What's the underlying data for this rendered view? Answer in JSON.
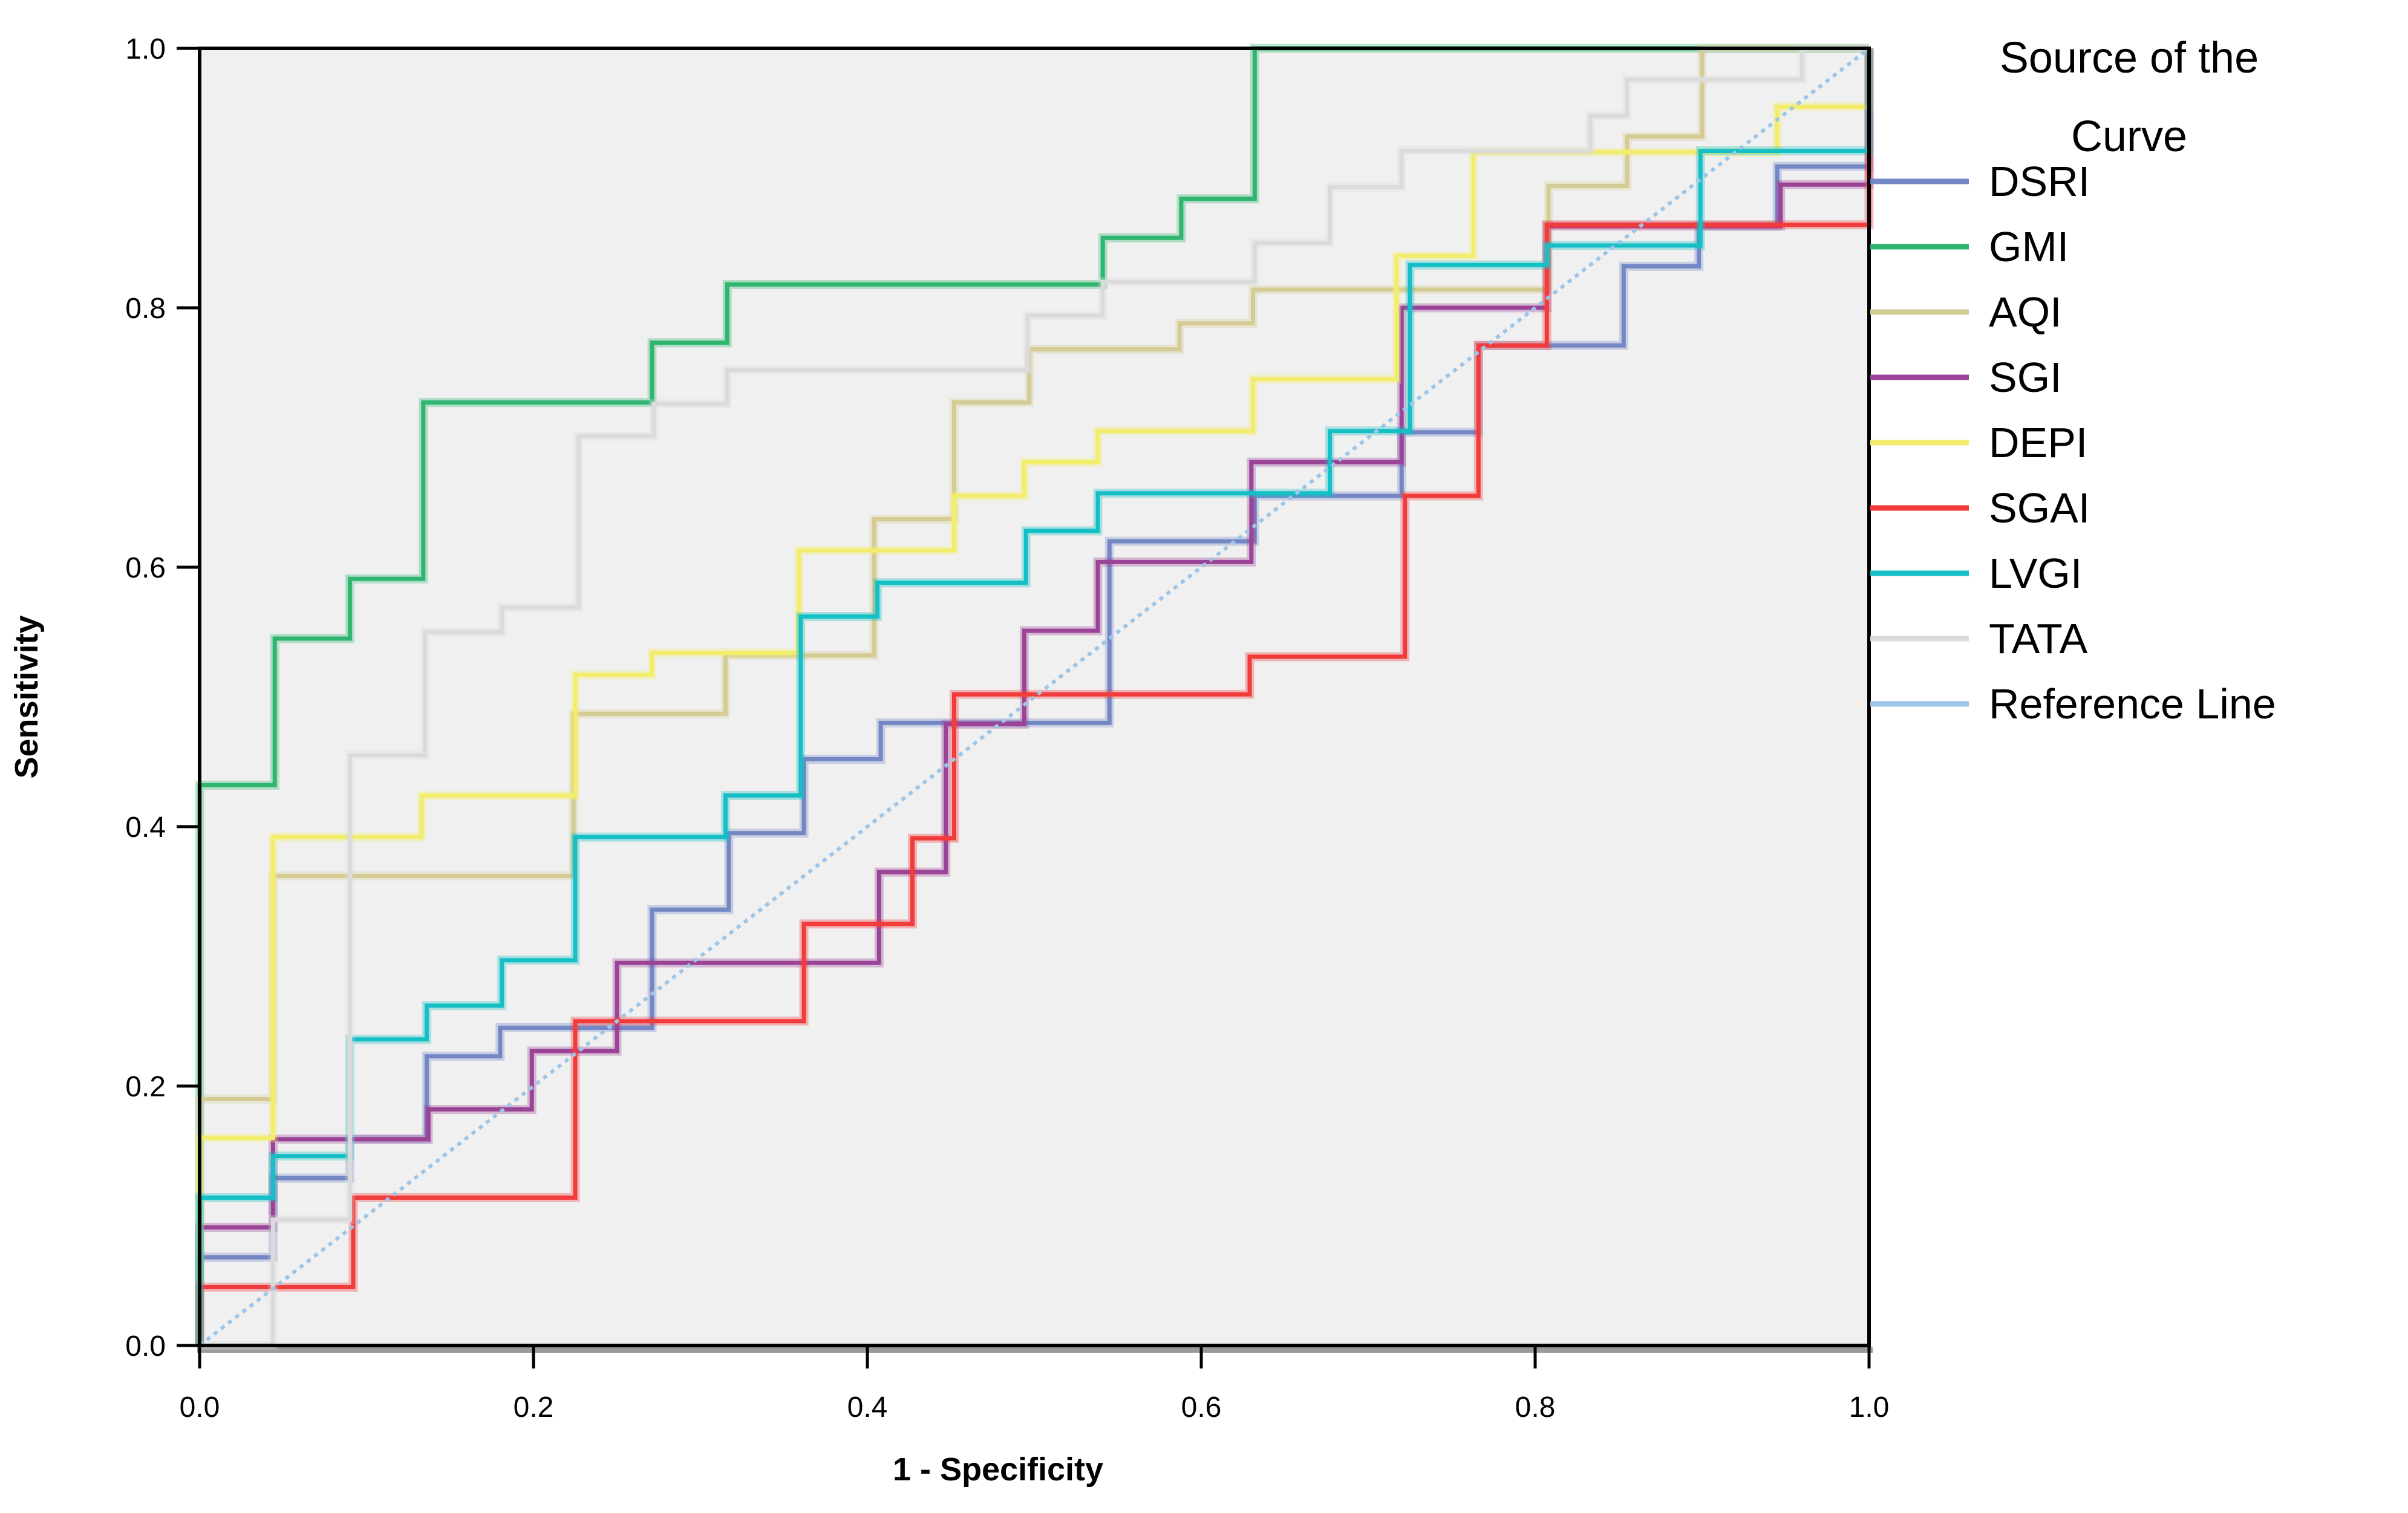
{
  "chart_data": {
    "type": "line",
    "subtype": "roc-step-curves",
    "xlabel": "1 - Specificity",
    "ylabel": "Sensitivity",
    "xlim": [
      0.0,
      1.0
    ],
    "ylim": [
      0.0,
      1.0
    ],
    "xticks": [
      0.0,
      0.2,
      0.4,
      0.6,
      0.8,
      1.0
    ],
    "yticks": [
      0.0,
      0.2,
      0.4,
      0.6,
      0.8,
      1.0
    ],
    "grid": false,
    "plot_background": "#F0F0F0",
    "frame_color": "#000000",
    "legend": {
      "title_lines": [
        "Source of the",
        "Curve"
      ],
      "position": "right"
    },
    "series": [
      {
        "name": "DSRI",
        "color": "#7487C5",
        "start": 0.068,
        "rises": [
          [
            0.044,
            0.129
          ],
          [
            0.09,
            0.159
          ],
          [
            0.136,
            0.223
          ],
          [
            0.18,
            0.245
          ],
          [
            0.271,
            0.336
          ],
          [
            0.317,
            0.395
          ],
          [
            0.362,
            0.452
          ],
          [
            0.408,
            0.48
          ],
          [
            0.545,
            0.62
          ],
          [
            0.632,
            0.655
          ],
          [
            0.72,
            0.704
          ],
          [
            0.766,
            0.771
          ],
          [
            0.853,
            0.832
          ],
          [
            0.898,
            0.863
          ],
          [
            0.945,
            0.909
          ],
          [
            1.0,
            1.0
          ]
        ]
      },
      {
        "name": "GMI",
        "color": "#2FB56F",
        "start": 0.432,
        "rises": [
          [
            0.045,
            0.545
          ],
          [
            0.09,
            0.591
          ],
          [
            0.134,
            0.727
          ],
          [
            0.271,
            0.773
          ],
          [
            0.316,
            0.818
          ],
          [
            0.541,
            0.854
          ],
          [
            0.588,
            0.884
          ],
          [
            0.632,
            1.0
          ]
        ]
      },
      {
        "name": "AQI",
        "color": "#D5CB95",
        "start": 0.19,
        "rises": [
          [
            0.044,
            0.362
          ],
          [
            0.224,
            0.487
          ],
          [
            0.315,
            0.532
          ],
          [
            0.404,
            0.637
          ],
          [
            0.452,
            0.727
          ],
          [
            0.497,
            0.768
          ],
          [
            0.587,
            0.788
          ],
          [
            0.631,
            0.814
          ],
          [
            0.808,
            0.894
          ],
          [
            0.855,
            0.932
          ],
          [
            0.9,
            1.0
          ]
        ]
      },
      {
        "name": "SGI",
        "color": "#9B4397",
        "start": 0.091,
        "rises": [
          [
            0.044,
            0.159
          ],
          [
            0.137,
            0.182
          ],
          [
            0.199,
            0.227
          ],
          [
            0.25,
            0.295
          ],
          [
            0.407,
            0.365
          ],
          [
            0.447,
            0.479
          ],
          [
            0.494,
            0.551
          ],
          [
            0.538,
            0.604
          ],
          [
            0.63,
            0.681
          ],
          [
            0.72,
            0.8
          ],
          [
            0.807,
            0.863
          ],
          [
            0.947,
            0.895
          ],
          [
            1.0,
            1.0
          ]
        ]
      },
      {
        "name": "DEPI",
        "color": "#F2ED6C",
        "start": 0.16,
        "rises": [
          [
            0.044,
            0.392
          ],
          [
            0.133,
            0.424
          ],
          [
            0.225,
            0.517
          ],
          [
            0.271,
            0.534
          ],
          [
            0.359,
            0.613
          ],
          [
            0.452,
            0.655
          ],
          [
            0.494,
            0.681
          ],
          [
            0.538,
            0.705
          ],
          [
            0.631,
            0.745
          ],
          [
            0.717,
            0.84
          ],
          [
            0.763,
            0.92
          ],
          [
            0.945,
            0.955
          ],
          [
            1.0,
            1.0
          ]
        ]
      },
      {
        "name": "SGAI",
        "color": "#F23B3B",
        "start": 0.045,
        "rises": [
          [
            0.092,
            0.114
          ],
          [
            0.225,
            0.25
          ],
          [
            0.362,
            0.325
          ],
          [
            0.427,
            0.391
          ],
          [
            0.452,
            0.502
          ],
          [
            0.629,
            0.531
          ],
          [
            0.722,
            0.655
          ],
          [
            0.766,
            0.771
          ],
          [
            0.807,
            0.864
          ],
          [
            1.0,
            1.0
          ]
        ]
      },
      {
        "name": "LVGI",
        "color": "#15BFC5",
        "start": 0.114,
        "rises": [
          [
            0.044,
            0.146
          ],
          [
            0.09,
            0.236
          ],
          [
            0.136,
            0.262
          ],
          [
            0.181,
            0.297
          ],
          [
            0.225,
            0.392
          ],
          [
            0.315,
            0.424
          ],
          [
            0.36,
            0.562
          ],
          [
            0.406,
            0.588
          ],
          [
            0.495,
            0.628
          ],
          [
            0.538,
            0.657
          ],
          [
            0.677,
            0.705
          ],
          [
            0.725,
            0.833
          ],
          [
            0.807,
            0.848
          ],
          [
            0.899,
            0.921
          ],
          [
            1.0,
            1.0
          ]
        ]
      },
      {
        "name": "TATA",
        "color": "#DBDBDB",
        "start": 0.0,
        "rises": [
          [
            0.044,
            0.097
          ],
          [
            0.09,
            0.455
          ],
          [
            0.135,
            0.55
          ],
          [
            0.181,
            0.569
          ],
          [
            0.227,
            0.701
          ],
          [
            0.272,
            0.726
          ],
          [
            0.316,
            0.752
          ],
          [
            0.496,
            0.794
          ],
          [
            0.541,
            0.82
          ],
          [
            0.632,
            0.85
          ],
          [
            0.677,
            0.893
          ],
          [
            0.72,
            0.921
          ],
          [
            0.833,
            0.948
          ],
          [
            0.855,
            0.976
          ],
          [
            0.96,
            1.0
          ]
        ]
      }
    ],
    "reference_line": {
      "name": "Reference Line",
      "color": "#9CC5E8",
      "from": [
        0.0,
        0.0
      ],
      "to": [
        1.0,
        1.0
      ],
      "style": "dotted"
    }
  }
}
